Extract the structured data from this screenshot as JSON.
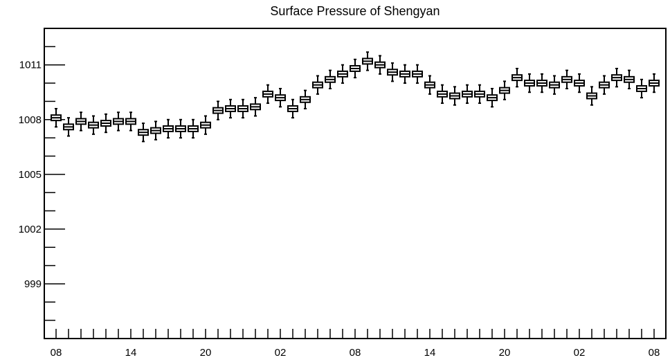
{
  "chart_data": {
    "type": "box",
    "title": "Surface Pressure of Shengyan",
    "xlabel": "",
    "ylabel": "",
    "ylim": [
      996.0,
      1013.0
    ],
    "y_ticks": [
      999,
      1002,
      1005,
      1008,
      1011
    ],
    "x_tick_labels": [
      "08",
      "14",
      "20",
      "02",
      "08",
      "14",
      "20",
      "02",
      "08"
    ],
    "x_tick_label_index": [
      0,
      6,
      12,
      18,
      24,
      30,
      36,
      42,
      48
    ],
    "grid": false,
    "legend": "none",
    "medians": [
      1008.1,
      1007.6,
      1007.9,
      1007.7,
      1007.8,
      1007.9,
      1007.9,
      1007.3,
      1007.4,
      1007.5,
      1007.5,
      1007.5,
      1007.7,
      1008.5,
      1008.6,
      1008.6,
      1008.7,
      1009.4,
      1009.2,
      1008.6,
      1009.1,
      1009.9,
      1010.2,
      1010.5,
      1010.8,
      1011.2,
      1011.0,
      1010.6,
      1010.5,
      1010.5,
      1009.9,
      1009.4,
      1009.3,
      1009.4,
      1009.4,
      1009.2,
      1009.6,
      1010.3,
      1010.0,
      1010.0,
      1009.9,
      1010.2,
      1010.0,
      1009.3,
      1009.9,
      1010.3,
      1010.2,
      1009.7,
      1010.0
    ]
  }
}
